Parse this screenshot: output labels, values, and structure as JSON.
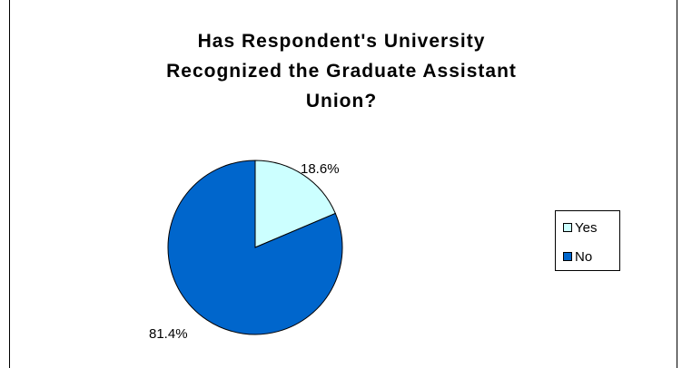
{
  "chart_data": {
    "type": "pie",
    "title": "Has Respondent's University Recognized the Graduate Assistant Union?",
    "title_lines": [
      "Has Respondent's University",
      "Recognized the Graduate Assistant",
      "Union?"
    ],
    "categories": [
      "Yes",
      "No"
    ],
    "values": [
      18.6,
      81.4
    ],
    "data_labels": [
      "18.6%",
      "81.4%"
    ],
    "colors": [
      "#ccffff",
      "#0066cc"
    ],
    "legend_position": "right"
  }
}
